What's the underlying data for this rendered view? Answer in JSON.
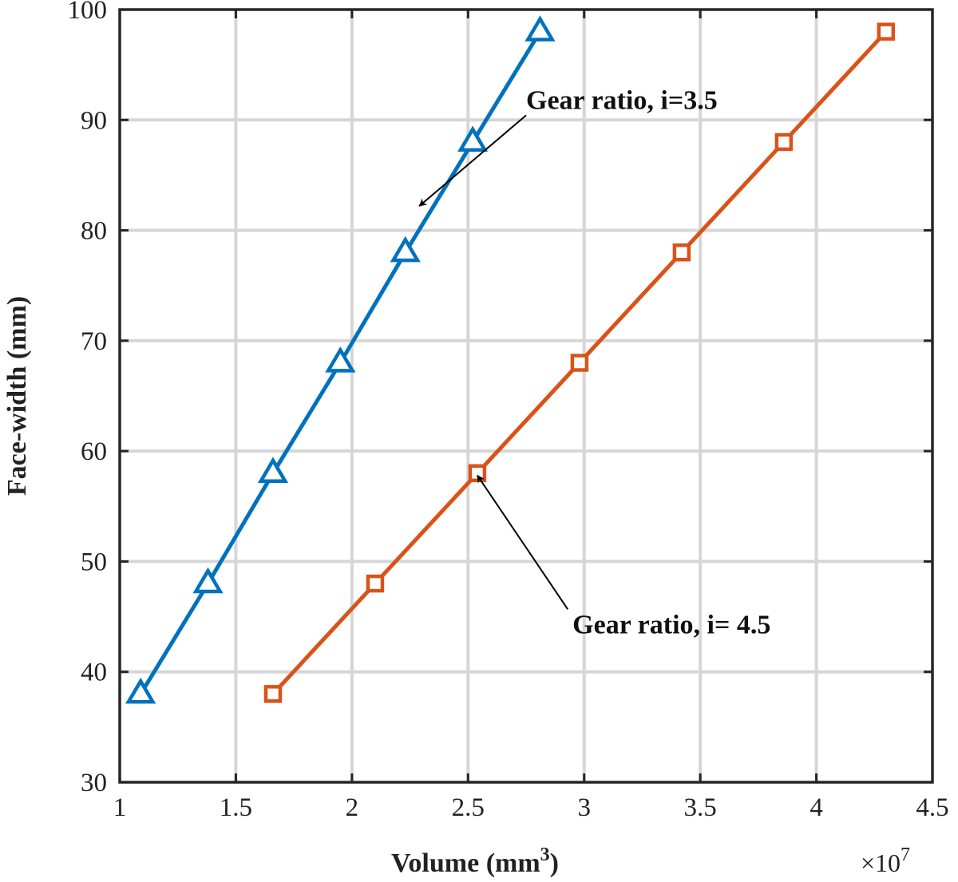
{
  "chart_data": {
    "type": "line",
    "title": "",
    "xlabel": "Volume (mm",
    "xlabel_sup": "3",
    "xlabel_tail": ")",
    "ylabel": "Face-width (mm)",
    "x_exponent": "×10",
    "x_exponent_power": "7",
    "xlim": [
      1,
      4.5
    ],
    "ylim": [
      30,
      100
    ],
    "xticks": [
      1,
      1.5,
      2,
      2.5,
      3,
      3.5,
      4,
      4.5
    ],
    "xtick_labels": [
      "1",
      "1.5",
      "2",
      "2.5",
      "3",
      "3.5",
      "4",
      "4.5"
    ],
    "yticks": [
      30,
      40,
      50,
      60,
      70,
      80,
      90,
      100
    ],
    "ytick_labels": [
      "30",
      "40",
      "50",
      "60",
      "70",
      "80",
      "90",
      "100"
    ],
    "grid": true,
    "series": [
      {
        "name": "Gear ratio, i=3.5",
        "marker": "triangle",
        "color": "#0072BD",
        "x": [
          1.09,
          1.38,
          1.66,
          1.95,
          2.23,
          2.52,
          2.81
        ],
        "y": [
          38,
          48,
          58,
          68,
          78,
          88,
          98
        ]
      },
      {
        "name": "Gear ratio, i= 4.5",
        "marker": "square",
        "color": "#D95319",
        "x": [
          1.66,
          2.1,
          2.54,
          2.98,
          3.42,
          3.86,
          4.3
        ],
        "y": [
          38,
          48,
          58,
          68,
          78,
          88,
          98
        ]
      }
    ],
    "annotations": [
      {
        "text": "Gear ratio, i=3.5",
        "text_x": 2.75,
        "text_y": 91,
        "anchor": "start",
        "point_x": 2.29,
        "point_y": 82.2
      },
      {
        "text": "Gear ratio, i= 4.5",
        "text_x": 2.95,
        "text_y": 43.5,
        "anchor": "start",
        "point_x": 2.54,
        "point_y": 57.8
      }
    ]
  }
}
